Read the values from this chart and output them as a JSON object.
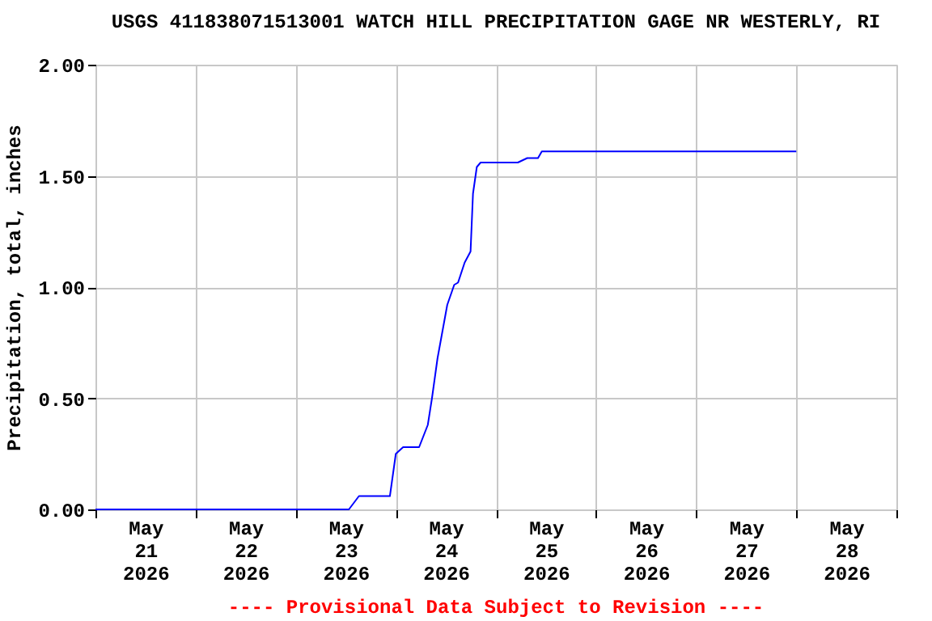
{
  "chart_data": {
    "type": "line",
    "title": "USGS 411838071513001 WATCH HILL PRECIPITATION GAGE NR WESTERLY, RI",
    "ylabel": "Precipitation, total, inches",
    "annotations": [
      "---- Provisional Data Subject to Revision ----"
    ],
    "x": [
      "2026-05-21T00:00",
      "2026-05-23T12:45",
      "2026-05-23T15:10",
      "2026-05-23T22:35",
      "2026-05-24T00:00",
      "2026-05-24T01:45",
      "2026-05-24T05:35",
      "2026-05-24T07:40",
      "2026-05-24T08:40",
      "2026-05-24T10:00",
      "2026-05-24T12:20",
      "2026-05-24T14:00",
      "2026-05-24T14:55",
      "2026-05-24T16:30",
      "2026-05-24T17:55",
      "2026-05-24T18:30",
      "2026-05-24T19:25",
      "2026-05-24T20:20",
      "2026-05-25T05:15",
      "2026-05-25T07:30",
      "2026-05-25T10:05",
      "2026-05-25T11:00",
      "2026-05-28T00:00"
    ],
    "series": [
      {
        "color": "#0000ff",
        "values": [
          0,
          0,
          0.06,
          0.06,
          0.25,
          0.28,
          0.28,
          0.38,
          0.5,
          0.68,
          0.92,
          1.01,
          1.02,
          1.11,
          1.16,
          1.42,
          1.54,
          1.56,
          1.56,
          1.58,
          1.58,
          1.61,
          1.61
        ]
      }
    ],
    "xlim": [
      "2026-05-21T00:00",
      "2026-05-29T00:00"
    ],
    "xticks": [
      {
        "value": "2026-05-21T00:00",
        "label": null
      },
      {
        "value": "2026-05-22T00:00",
        "label": null
      },
      {
        "value": "2026-05-23T00:00",
        "label": null
      },
      {
        "value": "2026-05-24T00:00",
        "label": null
      },
      {
        "value": "2026-05-25T00:00",
        "label": null
      },
      {
        "value": "2026-05-26T00:00",
        "label": null
      },
      {
        "value": "2026-05-27T00:00",
        "label": null
      },
      {
        "value": "2026-05-28T00:00",
        "label": null
      },
      {
        "value": "2026-05-29T00:00",
        "label": null
      },
      {
        "value": "2026-05-21T12:00",
        "label": "May\n21\n2026"
      },
      {
        "value": "2026-05-22T12:00",
        "label": "May\n22\n2026"
      },
      {
        "value": "2026-05-23T12:00",
        "label": "May\n23\n2026"
      },
      {
        "value": "2026-05-24T12:00",
        "label": "May\n24\n2026"
      },
      {
        "value": "2026-05-25T12:00",
        "label": "May\n25\n2026"
      },
      {
        "value": "2026-05-26T12:00",
        "label": "May\n26\n2026"
      },
      {
        "value": "2026-05-27T12:00",
        "label": "May\n27\n2026"
      },
      {
        "value": "2026-05-28T12:00",
        "label": "May\n28\n2026"
      }
    ],
    "ylim": [
      0,
      2
    ],
    "yticks": [
      {
        "value": 0,
        "label": "0.00"
      },
      {
        "value": 0.5,
        "label": "0.50"
      },
      {
        "value": 1,
        "label": "1.00"
      },
      {
        "value": 1.5,
        "label": "1.50"
      },
      {
        "value": 2,
        "label": "2.00"
      }
    ],
    "grid": true,
    "line_style": "solid",
    "marker": "none"
  }
}
